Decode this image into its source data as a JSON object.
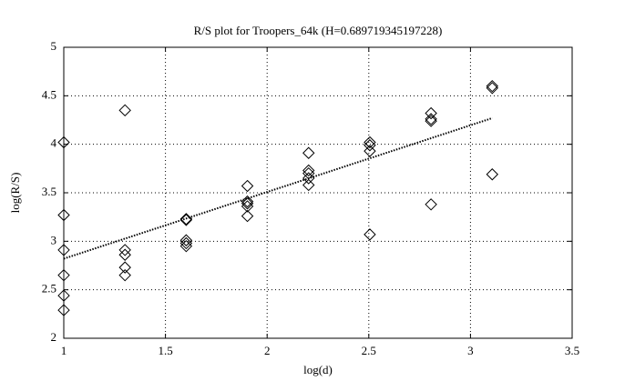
{
  "chart_data": {
    "type": "scatter",
    "title": "R/S plot for Troopers_64k (H=0.689719345197228)",
    "x_label": "log(d)",
    "y_label": "log(R/S)",
    "xlim": [
      1,
      3.5
    ],
    "ylim": [
      2,
      5
    ],
    "xticks": [
      1,
      1.5,
      2,
      2.5,
      3,
      3.5
    ],
    "yticks": [
      2,
      2.5,
      3,
      3.5,
      4,
      4.5,
      5
    ],
    "grid": true,
    "series": [
      {
        "marker": "diamond",
        "color": "#000000",
        "x": [
          1,
          1,
          1,
          1,
          1,
          1,
          1.301,
          1.301,
          1.301,
          1.301,
          1.301,
          1.602,
          1.602,
          1.602,
          1.602,
          1.602,
          1.903,
          1.903,
          1.903,
          1.903,
          1.903,
          2.204,
          2.204,
          2.204,
          2.204,
          2.204,
          2.505,
          2.505,
          2.505,
          2.505,
          2.806,
          2.806,
          2.806,
          2.806,
          3.107,
          3.107,
          3.107
        ],
        "values": [
          4.02,
          3.27,
          2.91,
          2.65,
          2.44,
          2.29,
          4.35,
          2.91,
          2.86,
          2.73,
          2.65,
          3.23,
          3.22,
          3.01,
          2.98,
          2.95,
          3.57,
          3.41,
          3.39,
          3.36,
          3.26,
          3.91,
          3.73,
          3.7,
          3.65,
          3.58,
          4.02,
          3.99,
          3.93,
          3.07,
          4.32,
          4.26,
          4.24,
          3.38,
          4.6,
          4.58,
          3.69
        ]
      },
      {
        "line": "dotted",
        "color": "#000000",
        "x": [
          1,
          3.107
        ],
        "values": [
          2.82,
          4.27
        ]
      }
    ]
  }
}
